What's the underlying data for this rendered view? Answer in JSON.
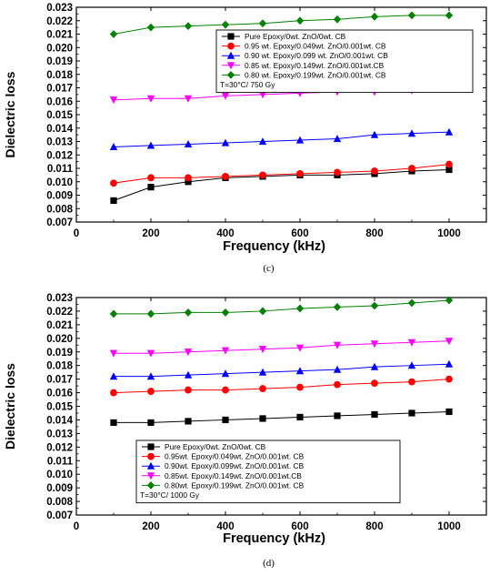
{
  "chart_data": [
    {
      "type": "line",
      "caption": "(c)",
      "xlabel": "Frequency (kHz)",
      "ylabel": "Dielectric loss",
      "xlim": [
        0,
        1100
      ],
      "ylim": [
        0.007,
        0.023
      ],
      "xticks": [
        0,
        200,
        400,
        600,
        800,
        1000
      ],
      "yticks": [
        "0.007",
        "0.008",
        "0.009",
        "0.010",
        "0.011",
        "0.012",
        "0.013",
        "0.014",
        "0.015",
        "0.016",
        "0.017",
        "0.018",
        "0.019",
        "0.020",
        "0.021",
        "0.022",
        "0.023"
      ],
      "legend_position": "top-right",
      "annotation": "T=30°C/ 750 Gy",
      "x": [
        100,
        200,
        300,
        400,
        500,
        600,
        700,
        800,
        900,
        1000
      ],
      "series": [
        {
          "name": "Pure Epoxy/0wt. ZnO/0wt. CB",
          "color": "#000000",
          "marker": "square",
          "values": [
            0.0086,
            0.0096,
            0.01,
            0.0103,
            0.0104,
            0.0105,
            0.0105,
            0.0106,
            0.0108,
            0.0109
          ]
        },
        {
          "name": "0.95 wt. Epoxy/0.049wt. ZnO/0.001wt. CB",
          "color": "#ff0000",
          "marker": "circle",
          "values": [
            0.0099,
            0.0103,
            0.0103,
            0.0104,
            0.0105,
            0.0106,
            0.0107,
            0.0108,
            0.011,
            0.0113
          ]
        },
        {
          "name": "0.90 wt. Epoxy/0.099 wt. ZnO/0.001wt. CB",
          "color": "#0000ff",
          "marker": "triangle-up",
          "values": [
            0.0126,
            0.0127,
            0.0128,
            0.0129,
            0.013,
            0.0131,
            0.0132,
            0.0135,
            0.0136,
            0.0137
          ]
        },
        {
          "name": "0.85 wt. Epoxy/0.149wt. ZnO/0.001wt.CB",
          "color": "#ff00ff",
          "marker": "triangle-down",
          "values": [
            0.0161,
            0.0162,
            0.0162,
            0.0164,
            0.0165,
            0.0166,
            0.0167,
            0.0167,
            0.0168,
            0.0169
          ]
        },
        {
          "name": "0.80 wt. Epoxy/0.199wt. ZnO/0.001wt. CB",
          "color": "#008000",
          "marker": "diamond",
          "values": [
            0.021,
            0.0215,
            0.0216,
            0.0217,
            0.0218,
            0.022,
            0.0221,
            0.0223,
            0.0224,
            0.0224
          ]
        }
      ]
    },
    {
      "type": "line",
      "caption": "(d)",
      "xlabel": "Frequency (kHz)",
      "ylabel": "Dielectric loss",
      "xlim": [
        0,
        1100
      ],
      "ylim": [
        0.007,
        0.023
      ],
      "xticks": [
        0,
        200,
        400,
        600,
        800,
        1000
      ],
      "yticks": [
        "0.007",
        "0.008",
        "0.009",
        "0.010",
        "0.011",
        "0.012",
        "0.013",
        "0.014",
        "0.015",
        "0.016",
        "0.017",
        "0.018",
        "0.019",
        "0.020",
        "0.021",
        "0.022",
        "0.023"
      ],
      "legend_position": "bottom-left",
      "annotation": "T=30°C/ 1000 Gy",
      "x": [
        100,
        200,
        300,
        400,
        500,
        600,
        700,
        800,
        900,
        1000
      ],
      "series": [
        {
          "name": "Pure Epoxy/0wt. ZnO/0wt. CB",
          "color": "#000000",
          "marker": "square",
          "values": [
            0.0138,
            0.0138,
            0.0139,
            0.014,
            0.0141,
            0.0142,
            0.0143,
            0.0144,
            0.0145,
            0.0146
          ]
        },
        {
          "name": "0.95wt. Epoxy/0.049wt. ZnO/0.001wt. CB",
          "color": "#ff0000",
          "marker": "circle",
          "values": [
            0.016,
            0.0161,
            0.0162,
            0.0162,
            0.0163,
            0.0164,
            0.0166,
            0.0167,
            0.0168,
            0.017
          ]
        },
        {
          "name": "0.90wt. Epoxy/0.099wt. ZnO/0.001wt. CB",
          "color": "#0000ff",
          "marker": "triangle-up",
          "values": [
            0.0172,
            0.0172,
            0.0173,
            0.0174,
            0.0175,
            0.0176,
            0.0177,
            0.0179,
            0.018,
            0.0181
          ]
        },
        {
          "name": "0.85wt. Epoxy/0.149wt. ZnO/0.001wt.CB",
          "color": "#ff00ff",
          "marker": "triangle-down",
          "values": [
            0.0189,
            0.0189,
            0.019,
            0.0191,
            0.0192,
            0.0193,
            0.0195,
            0.0196,
            0.0197,
            0.0198
          ]
        },
        {
          "name": "0.80wt. Epoxy/0.199wt. ZnO/0.001wt. CB",
          "color": "#008000",
          "marker": "diamond",
          "values": [
            0.0218,
            0.0218,
            0.0219,
            0.0219,
            0.022,
            0.0222,
            0.0223,
            0.0224,
            0.0226,
            0.0228
          ]
        }
      ]
    }
  ]
}
